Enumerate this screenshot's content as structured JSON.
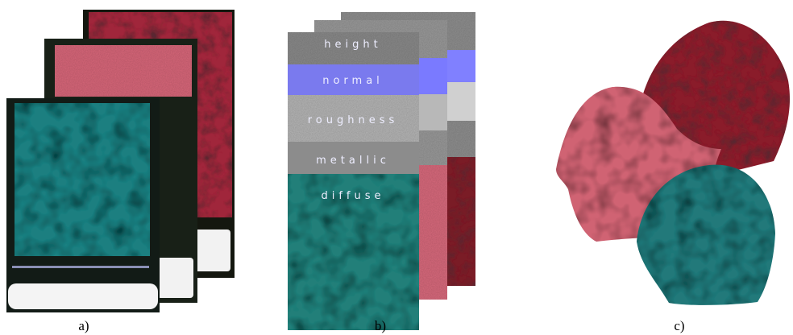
{
  "figure": {
    "captions": [
      "a)",
      "b)",
      "c)"
    ],
    "layers": [
      "height",
      "normal",
      "roughness",
      "metallic",
      "diffuse"
    ]
  }
}
